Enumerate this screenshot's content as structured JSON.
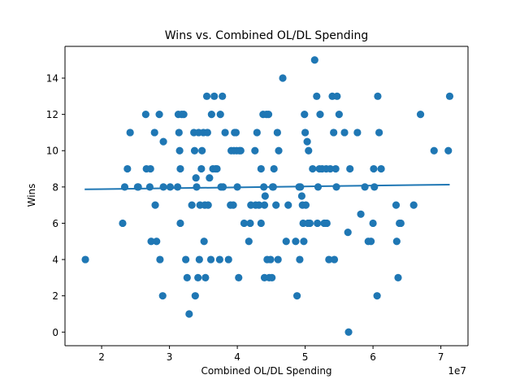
{
  "chart_data": {
    "type": "scatter",
    "title": "Wins vs. Combined OL/DL Spending",
    "xlabel": "Combined OL/DL Spending",
    "ylabel": "Wins",
    "x_offset_label": "1e7",
    "xlim": [
      14600000,
      74000000
    ],
    "ylim": [
      -0.75,
      15.75
    ],
    "x_ticks": [
      20000000,
      30000000,
      40000000,
      50000000,
      60000000,
      70000000
    ],
    "x_tick_labels": [
      "2",
      "3",
      "4",
      "5",
      "6",
      "7"
    ],
    "y_ticks": [
      0,
      2,
      4,
      6,
      8,
      10,
      12,
      14
    ],
    "y_tick_labels": [
      "0",
      "2",
      "4",
      "6",
      "8",
      "10",
      "12",
      "14"
    ],
    "grid": false,
    "marker_color": "#1f77b4",
    "trend_color": "#1f77b4",
    "trend_line": {
      "x": [
        17500000,
        71300000
      ],
      "y": [
        7.87,
        8.13
      ]
    },
    "points": [
      {
        "x": 17600000,
        "y": 4
      },
      {
        "x": 23100000,
        "y": 6
      },
      {
        "x": 23400000,
        "y": 8
      },
      {
        "x": 23800000,
        "y": 9
      },
      {
        "x": 24200000,
        "y": 11
      },
      {
        "x": 25300000,
        "y": 8
      },
      {
        "x": 25400000,
        "y": 8
      },
      {
        "x": 26500000,
        "y": 12
      },
      {
        "x": 26600000,
        "y": 9
      },
      {
        "x": 27100000,
        "y": 8
      },
      {
        "x": 27200000,
        "y": 9
      },
      {
        "x": 27300000,
        "y": 5
      },
      {
        "x": 27800000,
        "y": 11
      },
      {
        "x": 27900000,
        "y": 7
      },
      {
        "x": 28100000,
        "y": 5
      },
      {
        "x": 28500000,
        "y": 12
      },
      {
        "x": 28600000,
        "y": 4
      },
      {
        "x": 29000000,
        "y": 2
      },
      {
        "x": 29100000,
        "y": 8
      },
      {
        "x": 29100000,
        "y": 10.5
      },
      {
        "x": 30100000,
        "y": 8
      },
      {
        "x": 31200000,
        "y": 8
      },
      {
        "x": 31300000,
        "y": 12
      },
      {
        "x": 31400000,
        "y": 11
      },
      {
        "x": 31500000,
        "y": 10
      },
      {
        "x": 31600000,
        "y": 9
      },
      {
        "x": 31600000,
        "y": 6
      },
      {
        "x": 31800000,
        "y": 12
      },
      {
        "x": 32100000,
        "y": 12
      },
      {
        "x": 32400000,
        "y": 4
      },
      {
        "x": 32600000,
        "y": 3
      },
      {
        "x": 32900000,
        "y": 1
      },
      {
        "x": 33300000,
        "y": 7
      },
      {
        "x": 33600000,
        "y": 11
      },
      {
        "x": 33700000,
        "y": 10
      },
      {
        "x": 33800000,
        "y": 2
      },
      {
        "x": 33900000,
        "y": 8.5
      },
      {
        "x": 34000000,
        "y": 8
      },
      {
        "x": 34200000,
        "y": 3
      },
      {
        "x": 34300000,
        "y": 11
      },
      {
        "x": 34400000,
        "y": 4
      },
      {
        "x": 34500000,
        "y": 7
      },
      {
        "x": 34700000,
        "y": 9
      },
      {
        "x": 34800000,
        "y": 10
      },
      {
        "x": 35000000,
        "y": 11
      },
      {
        "x": 35100000,
        "y": 5
      },
      {
        "x": 35200000,
        "y": 7
      },
      {
        "x": 35300000,
        "y": 3
      },
      {
        "x": 35500000,
        "y": 13
      },
      {
        "x": 35600000,
        "y": 11
      },
      {
        "x": 35700000,
        "y": 7
      },
      {
        "x": 35900000,
        "y": 8.5
      },
      {
        "x": 36100000,
        "y": 4
      },
      {
        "x": 36200000,
        "y": 12
      },
      {
        "x": 36400000,
        "y": 9
      },
      {
        "x": 36600000,
        "y": 13
      },
      {
        "x": 36800000,
        "y": 9
      },
      {
        "x": 37000000,
        "y": 9
      },
      {
        "x": 37400000,
        "y": 4
      },
      {
        "x": 37500000,
        "y": 12
      },
      {
        "x": 37600000,
        "y": 8
      },
      {
        "x": 37800000,
        "y": 13
      },
      {
        "x": 37900000,
        "y": 8
      },
      {
        "x": 38200000,
        "y": 11
      },
      {
        "x": 38700000,
        "y": 4
      },
      {
        "x": 39000000,
        "y": 7
      },
      {
        "x": 39100000,
        "y": 10
      },
      {
        "x": 39400000,
        "y": 7
      },
      {
        "x": 39500000,
        "y": 10
      },
      {
        "x": 39600000,
        "y": 11
      },
      {
        "x": 39800000,
        "y": 11
      },
      {
        "x": 39900000,
        "y": 10
      },
      {
        "x": 40000000,
        "y": 8
      },
      {
        "x": 40200000,
        "y": 3
      },
      {
        "x": 40300000,
        "y": 10
      },
      {
        "x": 40500000,
        "y": 10
      },
      {
        "x": 41000000,
        "y": 6
      },
      {
        "x": 41700000,
        "y": 5
      },
      {
        "x": 41900000,
        "y": 6
      },
      {
        "x": 42000000,
        "y": 7
      },
      {
        "x": 42600000,
        "y": 10
      },
      {
        "x": 42700000,
        "y": 7
      },
      {
        "x": 42900000,
        "y": 11
      },
      {
        "x": 43200000,
        "y": 7
      },
      {
        "x": 43500000,
        "y": 9
      },
      {
        "x": 43500000,
        "y": 6
      },
      {
        "x": 43800000,
        "y": 12
      },
      {
        "x": 43900000,
        "y": 8
      },
      {
        "x": 44000000,
        "y": 7
      },
      {
        "x": 44000000,
        "y": 3
      },
      {
        "x": 44100000,
        "y": 7.5
      },
      {
        "x": 44300000,
        "y": 12
      },
      {
        "x": 44400000,
        "y": 4
      },
      {
        "x": 44600000,
        "y": 12
      },
      {
        "x": 44700000,
        "y": 3
      },
      {
        "x": 44900000,
        "y": 4
      },
      {
        "x": 45100000,
        "y": 3
      },
      {
        "x": 45200000,
        "y": 8
      },
      {
        "x": 45300000,
        "y": 8
      },
      {
        "x": 45400000,
        "y": 9
      },
      {
        "x": 45700000,
        "y": 7
      },
      {
        "x": 45900000,
        "y": 11
      },
      {
        "x": 46000000,
        "y": 4
      },
      {
        "x": 46100000,
        "y": 10
      },
      {
        "x": 46700000,
        "y": 14
      },
      {
        "x": 47200000,
        "y": 5
      },
      {
        "x": 47500000,
        "y": 7
      },
      {
        "x": 48600000,
        "y": 5
      },
      {
        "x": 48800000,
        "y": 2
      },
      {
        "x": 49100000,
        "y": 8
      },
      {
        "x": 49200000,
        "y": 4
      },
      {
        "x": 49300000,
        "y": 8
      },
      {
        "x": 49500000,
        "y": 7.5
      },
      {
        "x": 49600000,
        "y": 7
      },
      {
        "x": 49700000,
        "y": 6
      },
      {
        "x": 49800000,
        "y": 5
      },
      {
        "x": 49900000,
        "y": 12
      },
      {
        "x": 50000000,
        "y": 11
      },
      {
        "x": 50100000,
        "y": 7
      },
      {
        "x": 50300000,
        "y": 10.5
      },
      {
        "x": 50400000,
        "y": 6
      },
      {
        "x": 50500000,
        "y": 10
      },
      {
        "x": 50700000,
        "y": 6
      },
      {
        "x": 51100000,
        "y": 9
      },
      {
        "x": 51400000,
        "y": 15
      },
      {
        "x": 51700000,
        "y": 13
      },
      {
        "x": 51800000,
        "y": 6
      },
      {
        "x": 51900000,
        "y": 8
      },
      {
        "x": 52100000,
        "y": 9
      },
      {
        "x": 52200000,
        "y": 12
      },
      {
        "x": 52500000,
        "y": 9
      },
      {
        "x": 52800000,
        "y": 6
      },
      {
        "x": 52900000,
        "y": 6
      },
      {
        "x": 53100000,
        "y": 9
      },
      {
        "x": 53200000,
        "y": 6
      },
      {
        "x": 53500000,
        "y": 4
      },
      {
        "x": 53700000,
        "y": 9
      },
      {
        "x": 54000000,
        "y": 13
      },
      {
        "x": 54200000,
        "y": 11
      },
      {
        "x": 54300000,
        "y": 4
      },
      {
        "x": 54500000,
        "y": 9
      },
      {
        "x": 54600000,
        "y": 8
      },
      {
        "x": 54700000,
        "y": 13
      },
      {
        "x": 55000000,
        "y": 12
      },
      {
        "x": 55800000,
        "y": 11
      },
      {
        "x": 56300000,
        "y": 5.5
      },
      {
        "x": 56400000,
        "y": 0
      },
      {
        "x": 56600000,
        "y": 9
      },
      {
        "x": 57700000,
        "y": 11
      },
      {
        "x": 58200000,
        "y": 6.5
      },
      {
        "x": 58800000,
        "y": 8
      },
      {
        "x": 59300000,
        "y": 5
      },
      {
        "x": 59700000,
        "y": 5
      },
      {
        "x": 60000000,
        "y": 6
      },
      {
        "x": 60100000,
        "y": 9
      },
      {
        "x": 60200000,
        "y": 8
      },
      {
        "x": 60600000,
        "y": 2
      },
      {
        "x": 60700000,
        "y": 13
      },
      {
        "x": 60900000,
        "y": 11
      },
      {
        "x": 61200000,
        "y": 9
      },
      {
        "x": 63400000,
        "y": 7
      },
      {
        "x": 63500000,
        "y": 5
      },
      {
        "x": 63700000,
        "y": 3
      },
      {
        "x": 63900000,
        "y": 6
      },
      {
        "x": 64100000,
        "y": 6
      },
      {
        "x": 66000000,
        "y": 7
      },
      {
        "x": 67000000,
        "y": 12
      },
      {
        "x": 69000000,
        "y": 10
      },
      {
        "x": 71100000,
        "y": 10
      },
      {
        "x": 71300000,
        "y": 13
      }
    ]
  }
}
